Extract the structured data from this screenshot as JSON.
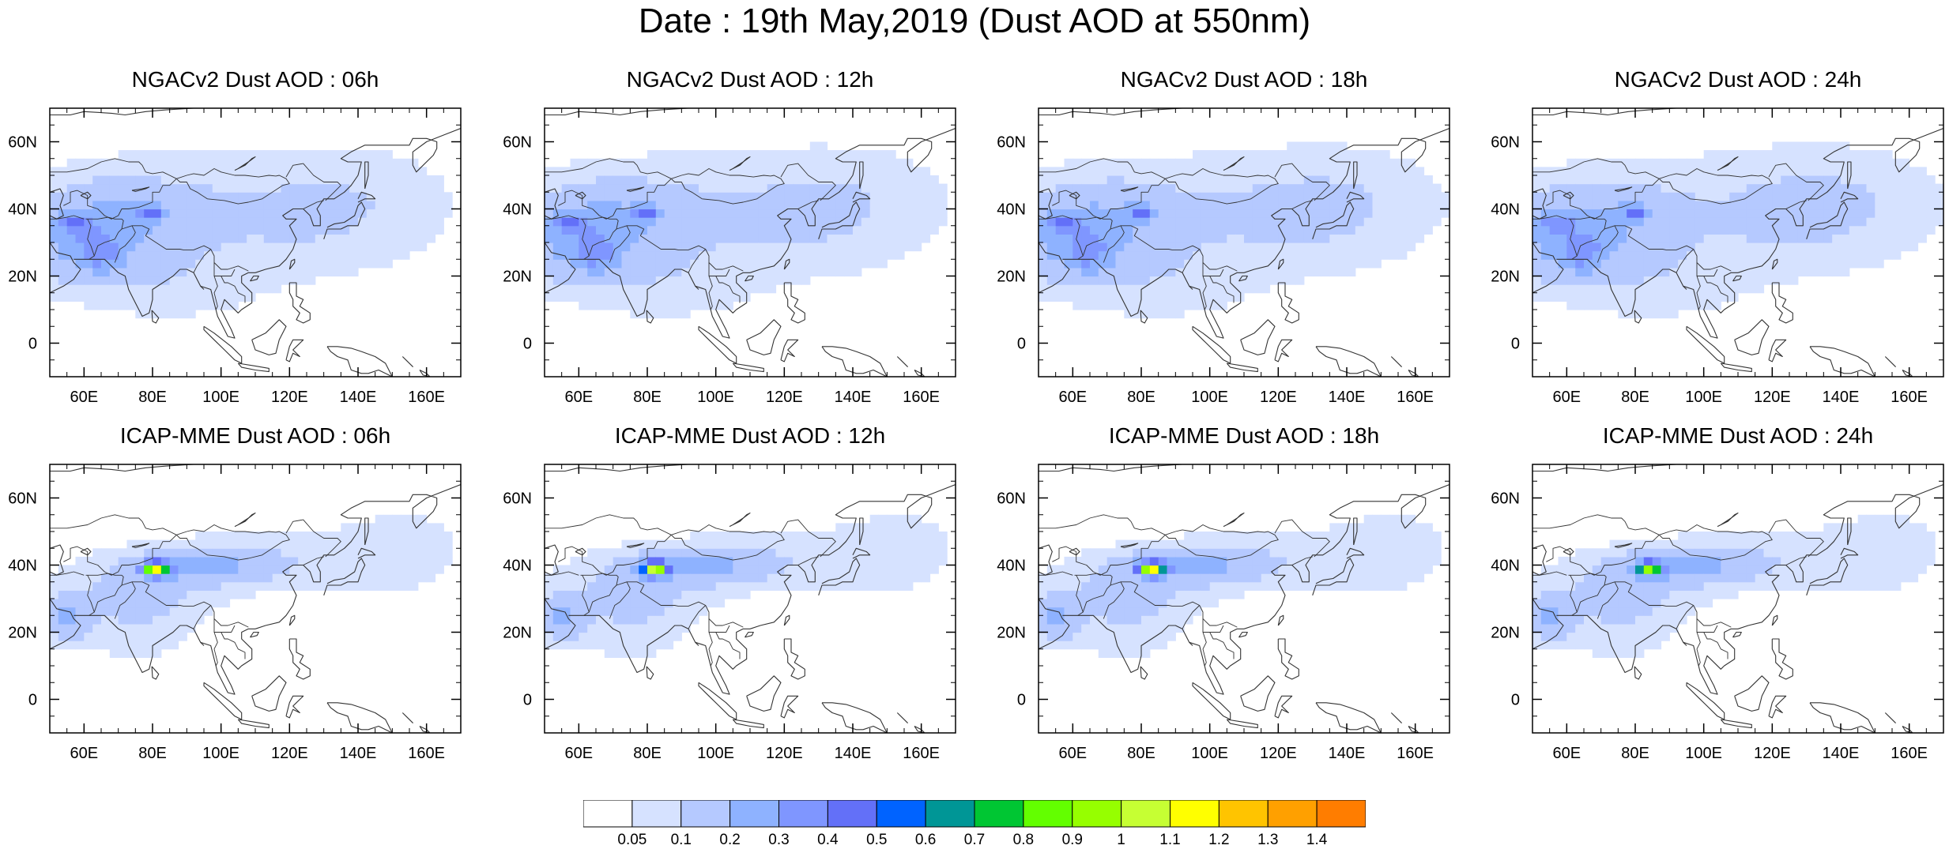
{
  "title": "Date : 19th May,2019 (Dust AOD at 550nm)",
  "panels": [
    {
      "title": "NGACv2 Dust AOD : 06h",
      "model": "NGACv2",
      "hour": "06h"
    },
    {
      "title": "NGACv2 Dust AOD : 12h",
      "model": "NGACv2",
      "hour": "12h"
    },
    {
      "title": "NGACv2 Dust AOD : 18h",
      "model": "NGACv2",
      "hour": "18h"
    },
    {
      "title": "NGACv2 Dust AOD : 24h",
      "model": "NGACv2",
      "hour": "24h"
    },
    {
      "title": "ICAP-MME Dust AOD : 06h",
      "model": "ICAP-MME",
      "hour": "06h"
    },
    {
      "title": "ICAP-MME Dust AOD : 12h",
      "model": "ICAP-MME",
      "hour": "12h"
    },
    {
      "title": "ICAP-MME Dust AOD : 18h",
      "model": "ICAP-MME",
      "hour": "18h"
    },
    {
      "title": "ICAP-MME Dust AOD : 24h",
      "model": "ICAP-MME",
      "hour": "24h"
    }
  ],
  "axes": {
    "x_ticks": [
      "60E",
      "80E",
      "100E",
      "120E",
      "140E",
      "160E"
    ],
    "x_tick_values": [
      60,
      80,
      100,
      120,
      140,
      160
    ],
    "y_ticks": [
      "60N",
      "40N",
      "20N",
      "0"
    ],
    "y_tick_values": [
      60,
      40,
      20,
      0
    ],
    "lon_range": [
      50,
      170
    ],
    "lat_range": [
      -10,
      70
    ]
  },
  "colorbar": {
    "labels": [
      "0.05",
      "0.1",
      "0.2",
      "0.3",
      "0.4",
      "0.5",
      "0.6",
      "0.7",
      "0.8",
      "0.9",
      "1",
      "1.1",
      "1.2",
      "1.3",
      "1.4"
    ],
    "colors": [
      "#ffffff",
      "#d6e2ff",
      "#b5c9ff",
      "#8eb2ff",
      "#7f96ff",
      "#6370f8",
      "#0063ff",
      "#009696",
      "#00c633",
      "#63ff00",
      "#96ff00",
      "#c6ff33",
      "#ffff00",
      "#ffc400",
      "#ffa000",
      "#ff7d00",
      "#ff1900"
    ]
  },
  "legend_colors_note_ignored": false
}
